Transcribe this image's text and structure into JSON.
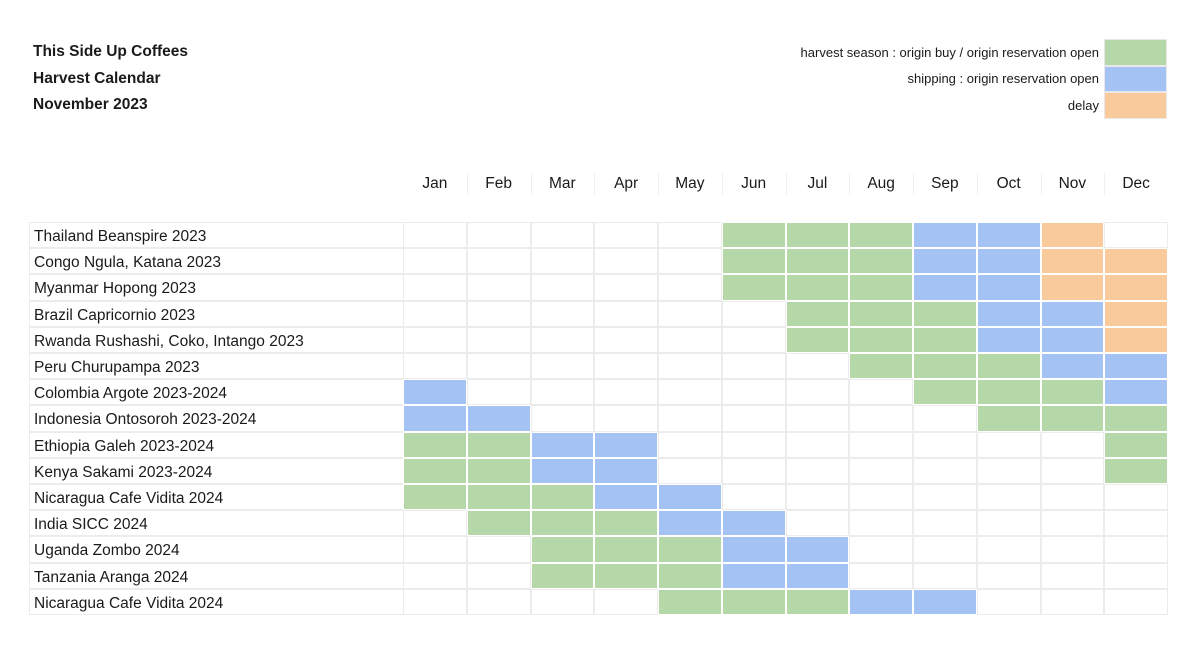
{
  "header": {
    "lines": [
      "This Side Up Coffees",
      "Harvest Calendar",
      "November 2023"
    ]
  },
  "legend": [
    {
      "label": "harvest season : origin buy / origin reservation open",
      "code": "h",
      "color": "#b6d7a8"
    },
    {
      "label": "shipping : origin reservation open",
      "code": "s",
      "color": "#a4c2f4"
    },
    {
      "label": "delay",
      "code": "d",
      "color": "#f9cb9c"
    }
  ],
  "chart_data": {
    "type": "table",
    "months": [
      "Jan",
      "Feb",
      "Mar",
      "Apr",
      "May",
      "Jun",
      "Jul",
      "Aug",
      "Sep",
      "Oct",
      "Nov",
      "Dec"
    ],
    "rows": [
      {
        "name": "Thailand Beanspire 2023",
        "cells": [
          "",
          "",
          "",
          "",
          "",
          "h",
          "h",
          "h",
          "s",
          "s",
          "d",
          ""
        ]
      },
      {
        "name": "Congo Ngula, Katana 2023",
        "cells": [
          "",
          "",
          "",
          "",
          "",
          "h",
          "h",
          "h",
          "s",
          "s",
          "d",
          "d"
        ]
      },
      {
        "name": "Myanmar Hopong 2023",
        "cells": [
          "",
          "",
          "",
          "",
          "",
          "h",
          "h",
          "h",
          "s",
          "s",
          "d",
          "d"
        ]
      },
      {
        "name": "Brazil Capricornio 2023",
        "cells": [
          "",
          "",
          "",
          "",
          "",
          "",
          "h",
          "h",
          "h",
          "s",
          "s",
          "d"
        ]
      },
      {
        "name": "Rwanda Rushashi, Coko, Intango 2023",
        "cells": [
          "",
          "",
          "",
          "",
          "",
          "",
          "h",
          "h",
          "h",
          "s",
          "s",
          "d"
        ]
      },
      {
        "name": "Peru Churupampa 2023",
        "cells": [
          "",
          "",
          "",
          "",
          "",
          "",
          "",
          "h",
          "h",
          "h",
          "s",
          "s"
        ]
      },
      {
        "name": "Colombia Argote 2023-2024",
        "cells": [
          "s",
          "",
          "",
          "",
          "",
          "",
          "",
          "",
          "h",
          "h",
          "h",
          "s"
        ]
      },
      {
        "name": "Indonesia Ontosoroh 2023-2024",
        "cells": [
          "s",
          "s",
          "",
          "",
          "",
          "",
          "",
          "",
          "",
          "h",
          "h",
          "h"
        ]
      },
      {
        "name": "Ethiopia Galeh 2023-2024",
        "cells": [
          "h",
          "h",
          "s",
          "s",
          "",
          "",
          "",
          "",
          "",
          "",
          "",
          "h"
        ]
      },
      {
        "name": "Kenya Sakami 2023-2024",
        "cells": [
          "h",
          "h",
          "s",
          "s",
          "",
          "",
          "",
          "",
          "",
          "",
          "",
          "h"
        ]
      },
      {
        "name": "Nicaragua Cafe Vidita 2024",
        "cells": [
          "h",
          "h",
          "h",
          "s",
          "s",
          "",
          "",
          "",
          "",
          "",
          "",
          ""
        ]
      },
      {
        "name": "India SICC 2024",
        "cells": [
          "",
          "h",
          "h",
          "h",
          "s",
          "s",
          "",
          "",
          "",
          "",
          "",
          ""
        ]
      },
      {
        "name": "Uganda Zombo 2024",
        "cells": [
          "",
          "",
          "h",
          "h",
          "h",
          "s",
          "s",
          "",
          "",
          "",
          "",
          ""
        ]
      },
      {
        "name": "Tanzania Aranga 2024",
        "cells": [
          "",
          "",
          "h",
          "h",
          "h",
          "s",
          "s",
          "",
          "",
          "",
          "",
          ""
        ]
      },
      {
        "name": "Nicaragua Cafe Vidita 2024",
        "cells": [
          "",
          "",
          "",
          "",
          "h",
          "h",
          "h",
          "s",
          "s",
          "",
          "",
          ""
        ]
      }
    ]
  }
}
